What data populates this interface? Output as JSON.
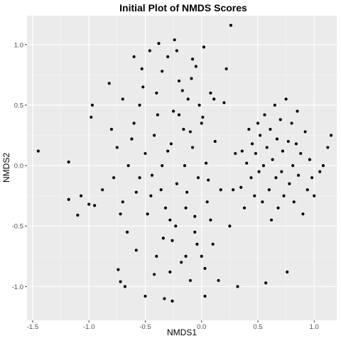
{
  "chart_data": {
    "type": "scatter",
    "title": "Initial Plot of NMDS Scores",
    "xlabel": "NMDS1",
    "ylabel": "NMDS2",
    "xlim": [
      -1.55,
      1.2
    ],
    "ylim": [
      -1.28,
      1.24
    ],
    "x_ticks": [
      -1.5,
      -1.0,
      -0.5,
      0.0,
      0.5,
      1.0
    ],
    "x_tick_labels": [
      "-1.5",
      "-1.0",
      "-0.5",
      "0.0",
      "0.5",
      "1.0"
    ],
    "y_ticks": [
      -1.0,
      -0.5,
      0.0,
      0.5,
      1.0
    ],
    "y_tick_labels": [
      "-1.0",
      "-0.5",
      "0.0",
      "0.5",
      "1.0"
    ],
    "grid": true,
    "background": "#ebebeb",
    "point_color": "#000000",
    "points": [
      [
        -1.45,
        0.12
      ],
      [
        -1.18,
        0.03
      ],
      [
        -1.18,
        -0.28
      ],
      [
        -1.1,
        -0.41
      ],
      [
        -1.07,
        -0.25
      ],
      [
        -1.0,
        -0.32
      ],
      [
        -0.98,
        0.4
      ],
      [
        -0.97,
        0.5
      ],
      [
        -0.95,
        -0.33
      ],
      [
        -0.88,
        -0.2
      ],
      [
        -0.82,
        0.68
      ],
      [
        -0.8,
        0.3
      ],
      [
        -0.78,
        -0.1
      ],
      [
        -0.75,
        0.15
      ],
      [
        -0.74,
        -0.86
      ],
      [
        -0.72,
        -0.4
      ],
      [
        -0.72,
        -0.96
      ],
      [
        -0.7,
        -0.3
      ],
      [
        -0.7,
        0.55
      ],
      [
        -0.68,
        -1.0
      ],
      [
        -0.66,
        -0.55
      ],
      [
        -0.6,
        0.9
      ],
      [
        -0.58,
        -0.7
      ],
      [
        -0.55,
        -0.1
      ],
      [
        -0.53,
        0.8
      ],
      [
        -0.5,
        0.1
      ],
      [
        -0.5,
        -1.08
      ],
      [
        -0.46,
        0.95
      ],
      [
        -0.45,
        -0.25
      ],
      [
        -0.42,
        -0.9
      ],
      [
        -0.4,
        0.6
      ],
      [
        -0.38,
        1.01
      ],
      [
        -0.35,
        0.0
      ],
      [
        -0.34,
        -0.6
      ],
      [
        -0.33,
        -1.1
      ],
      [
        -0.3,
        0.9
      ],
      [
        -0.28,
        -0.45
      ],
      [
        -0.26,
        -1.12
      ],
      [
        -0.25,
        0.45
      ],
      [
        -0.24,
        1.04
      ],
      [
        -0.22,
        -0.15
      ],
      [
        -0.2,
        0.7
      ],
      [
        -0.18,
        -0.8
      ],
      [
        -0.16,
        0.3
      ],
      [
        -0.14,
        -0.35
      ],
      [
        -0.12,
        0.55
      ],
      [
        -0.1,
        -0.95
      ],
      [
        -0.08,
        0.15
      ],
      [
        -0.06,
        -0.55
      ],
      [
        -0.05,
        0.82
      ],
      [
        -0.03,
        -0.1
      ],
      [
        0.0,
        -0.75
      ],
      [
        0.0,
        0.35
      ],
      [
        0.02,
        0.98
      ],
      [
        0.03,
        -1.08
      ],
      [
        0.05,
        -0.3
      ],
      [
        0.08,
        0.6
      ],
      [
        0.1,
        -0.65
      ],
      [
        0.12,
        0.2
      ],
      [
        0.15,
        -0.95
      ],
      [
        0.17,
        -0.2
      ],
      [
        0.2,
        0.52
      ],
      [
        0.22,
        0.8
      ],
      [
        0.25,
        -0.5
      ],
      [
        0.26,
        1.16
      ],
      [
        0.28,
        -0.2
      ],
      [
        0.3,
        0.1
      ],
      [
        0.32,
        -1.0
      ],
      [
        0.35,
        -0.18
      ],
      [
        0.36,
        0.12
      ],
      [
        0.38,
        -0.35
      ],
      [
        0.4,
        0.02
      ],
      [
        0.42,
        0.3
      ],
      [
        0.44,
        -0.1
      ],
      [
        0.45,
        0.18
      ],
      [
        0.47,
        -0.25
      ],
      [
        0.48,
        0.1
      ],
      [
        0.5,
        0.35
      ],
      [
        0.51,
        -0.05
      ],
      [
        0.52,
        0.25
      ],
      [
        0.54,
        -0.3
      ],
      [
        0.55,
        0.0
      ],
      [
        0.56,
        0.42
      ],
      [
        0.57,
        -0.97
      ],
      [
        0.58,
        0.15
      ],
      [
        0.6,
        -0.2
      ],
      [
        0.61,
        0.3
      ],
      [
        0.62,
        -0.45
      ],
      [
        0.63,
        0.05
      ],
      [
        0.65,
        0.5
      ],
      [
        0.66,
        -0.1
      ],
      [
        0.67,
        0.22
      ],
      [
        0.68,
        -0.35
      ],
      [
        0.7,
        0.38
      ],
      [
        0.71,
        -0.05
      ],
      [
        0.72,
        0.12
      ],
      [
        0.73,
        -0.25
      ],
      [
        0.75,
        0.55
      ],
      [
        0.76,
        -0.88
      ],
      [
        0.77,
        0.2
      ],
      [
        0.78,
        -0.15
      ],
      [
        0.8,
        0.35
      ],
      [
        0.81,
        0.0
      ],
      [
        0.82,
        -0.3
      ],
      [
        0.84,
        0.18
      ],
      [
        0.85,
        0.45
      ],
      [
        0.86,
        -0.08
      ],
      [
        0.88,
        0.1
      ],
      [
        0.9,
        -0.4
      ],
      [
        0.92,
        0.28
      ],
      [
        0.94,
        -0.2
      ],
      [
        0.96,
        0.05
      ],
      [
        0.98,
        -0.1
      ],
      [
        1.0,
        -0.25
      ],
      [
        1.05,
        -0.05
      ],
      [
        1.08,
        0.0
      ],
      [
        1.12,
        0.15
      ],
      [
        1.15,
        0.25
      ],
      [
        -0.6,
        0.35
      ],
      [
        -0.55,
        0.5
      ],
      [
        -0.48,
        -0.4
      ],
      [
        -0.42,
        0.25
      ],
      [
        -0.36,
        -0.2
      ],
      [
        -0.3,
        0.12
      ],
      [
        -0.26,
        -0.62
      ],
      [
        -0.2,
        0.42
      ],
      [
        -0.15,
        0.0
      ],
      [
        -0.1,
        0.28
      ],
      [
        -0.06,
        -0.42
      ],
      [
        -0.02,
        0.5
      ],
      [
        0.04,
        0.02
      ],
      [
        0.08,
        -0.45
      ],
      [
        -0.65,
        0.0
      ],
      [
        -0.62,
        0.22
      ],
      [
        -0.58,
        -0.22
      ],
      [
        -0.52,
        0.65
      ],
      [
        -0.44,
        -0.08
      ],
      [
        -0.39,
        0.42
      ],
      [
        -0.32,
        -0.35
      ],
      [
        -0.27,
        0.18
      ],
      [
        -0.23,
        -0.5
      ],
      [
        -0.17,
        0.62
      ],
      [
        -0.13,
        -0.22
      ],
      [
        -0.09,
        0.72
      ],
      [
        -0.04,
        -0.65
      ],
      [
        0.01,
        0.4
      ],
      [
        0.06,
        -0.12
      ],
      [
        0.11,
        0.55
      ],
      [
        -0.4,
        -0.75
      ],
      [
        -0.35,
        0.78
      ],
      [
        -0.28,
        -0.88
      ],
      [
        -0.22,
        0.95
      ],
      [
        -0.14,
        -0.75
      ],
      [
        -0.08,
        0.88
      ],
      [
        0.03,
        -0.85
      ]
    ]
  }
}
